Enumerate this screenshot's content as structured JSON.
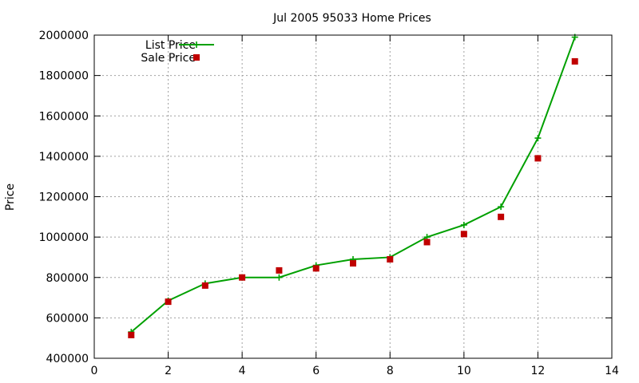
{
  "chart_data": {
    "type": "line",
    "title": "Jul 2005 95033 Home Prices",
    "xlabel": "",
    "ylabel": "Price",
    "xlim": [
      0,
      14
    ],
    "ylim": [
      400000,
      2000000
    ],
    "xticks": [
      0,
      2,
      4,
      6,
      8,
      10,
      12,
      14
    ],
    "yticks": [
      400000,
      600000,
      800000,
      1000000,
      1200000,
      1400000,
      1600000,
      1800000,
      2000000
    ],
    "grid": true,
    "legend_position": "top-left",
    "series": [
      {
        "name": "List Price",
        "style": "line-plus",
        "color": "#00a000",
        "x": [
          1,
          2,
          3,
          4,
          5,
          6,
          7,
          8,
          9,
          10,
          11,
          12,
          13
        ],
        "y": [
          530000,
          685000,
          770000,
          800000,
          800000,
          860000,
          890000,
          900000,
          1000000,
          1060000,
          1150000,
          1490000,
          1990000
        ]
      },
      {
        "name": "Sale Price",
        "style": "square",
        "color": "#c00000",
        "x": [
          1,
          2,
          3,
          4,
          5,
          6,
          7,
          8,
          9,
          10,
          11,
          12,
          13
        ],
        "y": [
          515000,
          680000,
          760000,
          800000,
          835000,
          845000,
          870000,
          890000,
          975000,
          1015000,
          1100000,
          1390000,
          1870000
        ]
      }
    ]
  }
}
